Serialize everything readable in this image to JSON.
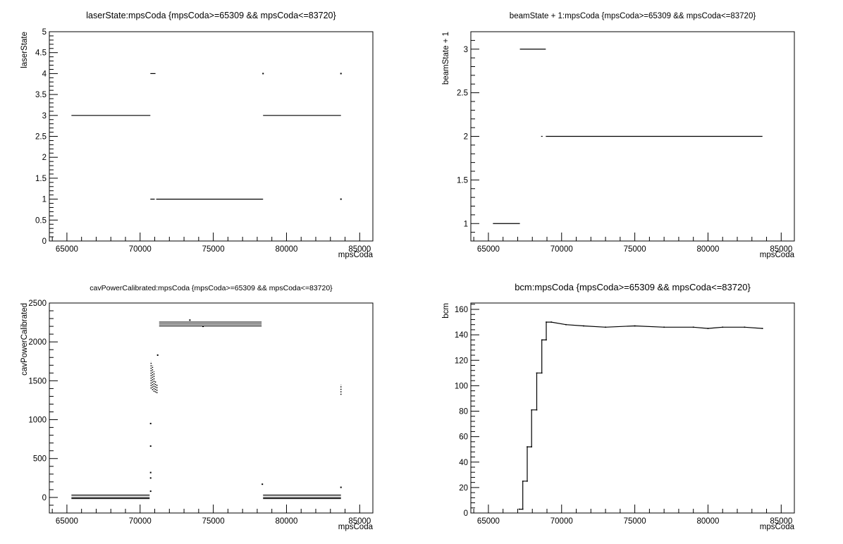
{
  "chart_data": [
    {
      "type": "scatter",
      "title": "laserState:mpsCoda {mpsCoda>=65309 && mpsCoda<=83720}",
      "xlabel": "mpsCoda",
      "ylabel": "laserState",
      "xlim": [
        63800,
        85900
      ],
      "ylim": [
        0,
        5
      ],
      "xticks": [
        65000,
        70000,
        75000,
        80000,
        85000
      ],
      "yticks": [
        0,
        0.5,
        1,
        1.5,
        2,
        2.5,
        3,
        3.5,
        4,
        4.5,
        5
      ],
      "ytick_labels": [
        "0",
        "0.5",
        "1",
        "1.5",
        "2",
        "2.5",
        "3",
        "3.5",
        "4",
        "4.5",
        "5"
      ],
      "segments": [
        {
          "x0": 65309,
          "x1": 70700,
          "y": 3
        },
        {
          "x0": 70700,
          "x1": 71050,
          "y": 4
        },
        {
          "x0": 70700,
          "x1": 71000,
          "y": 1
        },
        {
          "x0": 71100,
          "x1": 78400,
          "y": 1
        },
        {
          "x0": 78400,
          "x1": 83720,
          "y": 3
        }
      ],
      "points": [
        {
          "x": 78400,
          "y": 4
        },
        {
          "x": 83720,
          "y": 4
        },
        {
          "x": 83720,
          "y": 1
        }
      ]
    },
    {
      "type": "scatter",
      "title": "beamState + 1:mpsCoda {mpsCoda>=65309 && mpsCoda<=83720}",
      "xlabel": "mpsCoda",
      "ylabel": "beamState + 1",
      "xlim": [
        63800,
        85900
      ],
      "ylim": [
        0.8,
        3.2
      ],
      "xticks": [
        65000,
        70000,
        75000,
        80000,
        85000
      ],
      "yticks": [
        1,
        1.5,
        2,
        2.5,
        3
      ],
      "ytick_labels": [
        "1",
        "1.5",
        "2",
        "2.5",
        "3"
      ],
      "segments": [
        {
          "x0": 65309,
          "x1": 67150,
          "y": 1
        },
        {
          "x0": 67150,
          "x1": 68920,
          "y": 3
        },
        {
          "x0": 68600,
          "x1": 68700,
          "y": 2
        },
        {
          "x0": 68920,
          "x1": 83720,
          "y": 2
        }
      ],
      "points": []
    },
    {
      "type": "scatter",
      "title": "cavPowerCalibrated:mpsCoda {mpsCoda>=65309 && mpsCoda<=83720}",
      "xlabel": "mpsCoda",
      "ylabel": "cavPowerCalibrated",
      "xlim": [
        63800,
        85900
      ],
      "ylim": [
        -200,
        2500
      ],
      "xticks": [
        65000,
        70000,
        75000,
        80000,
        85000
      ],
      "yticks": [
        0,
        500,
        1000,
        1500,
        2000,
        2500
      ],
      "ytick_labels": [
        "0",
        "500",
        "1000",
        "1500",
        "2000",
        "2500"
      ],
      "segments": [
        {
          "x0": 65309,
          "x1": 70650,
          "y": 30
        },
        {
          "x0": 65309,
          "x1": 70650,
          "y": 0
        },
        {
          "x0": 65309,
          "x1": 70650,
          "y": -15
        },
        {
          "x0": 71300,
          "x1": 78300,
          "y": 2255
        },
        {
          "x0": 71300,
          "x1": 78300,
          "y": 2230
        },
        {
          "x0": 71300,
          "x1": 78300,
          "y": 2205
        },
        {
          "x0": 78400,
          "x1": 83720,
          "y": 30
        },
        {
          "x0": 78400,
          "x1": 83720,
          "y": 0
        },
        {
          "x0": 78400,
          "x1": 83720,
          "y": -15
        }
      ],
      "vdots": [
        {
          "x": 70750,
          "y0": 1400,
          "y1": 1750
        },
        {
          "x": 70850,
          "y0": 1380,
          "y1": 1700
        },
        {
          "x": 70950,
          "y0": 1360,
          "y1": 1620
        },
        {
          "x": 71050,
          "y0": 1350,
          "y1": 1500
        },
        {
          "x": 71150,
          "y0": 1340,
          "y1": 1450
        },
        {
          "x": 83720,
          "y0": 1320,
          "y1": 1450
        }
      ],
      "points": [
        {
          "x": 70720,
          "y": 950
        },
        {
          "x": 70720,
          "y": 660
        },
        {
          "x": 70720,
          "y": 320
        },
        {
          "x": 70720,
          "y": 250
        },
        {
          "x": 70720,
          "y": 80
        },
        {
          "x": 71200,
          "y": 1830
        },
        {
          "x": 73400,
          "y": 2280
        },
        {
          "x": 74300,
          "y": 2200
        },
        {
          "x": 78350,
          "y": 170
        },
        {
          "x": 83720,
          "y": 130
        }
      ]
    },
    {
      "type": "line",
      "title": "bcm:mpsCoda {mpsCoda>=65309 && mpsCoda<=83720}",
      "xlabel": "mpsCoda",
      "ylabel": "bcm",
      "xlim": [
        63800,
        85900
      ],
      "ylim": [
        0,
        165
      ],
      "xticks": [
        65000,
        70000,
        75000,
        80000,
        85000
      ],
      "yticks": [
        0,
        20,
        40,
        60,
        80,
        100,
        120,
        140,
        160
      ],
      "ytick_labels": [
        "0",
        "20",
        "40",
        "60",
        "80",
        "100",
        "120",
        "140",
        "160"
      ],
      "x": [
        67100,
        67350,
        67350,
        67650,
        67650,
        67950,
        67950,
        68300,
        68300,
        68650,
        68650,
        68950,
        68950,
        69300,
        70300,
        71500,
        73000,
        75000,
        77000,
        79000,
        80000,
        81000,
        82500,
        83720
      ],
      "values": [
        3,
        3,
        25,
        25,
        52,
        52,
        81,
        81,
        110,
        110,
        136,
        136,
        150,
        150,
        148,
        147,
        146,
        147,
        146,
        146,
        145,
        146,
        146,
        145
      ]
    }
  ]
}
